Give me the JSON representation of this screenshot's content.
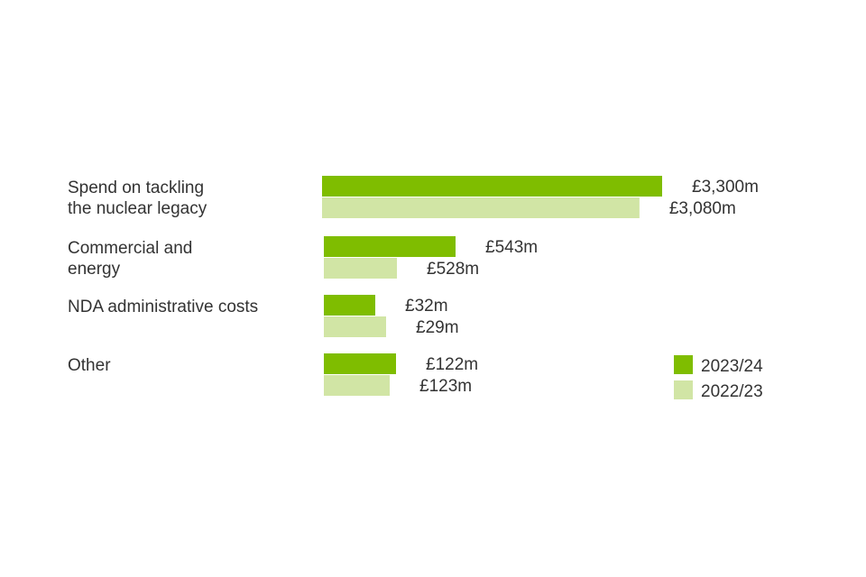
{
  "chart_data": {
    "type": "bar",
    "orientation": "horizontal",
    "categories": [
      [
        "Spend on tackling",
        "the nuclear legacy"
      ],
      [
        "Commercial and",
        "energy"
      ],
      [
        "NDA administrative costs"
      ],
      [
        "Other"
      ]
    ],
    "series": [
      {
        "name": "2023/24",
        "color": "#7fbd00",
        "values": [
          3300,
          543,
          32,
          122
        ],
        "value_labels": [
          "£3,300m",
          "£543m",
          "£32m",
          "£122m"
        ]
      },
      {
        "name": "2022/23",
        "color": "#d1e5a5",
        "values": [
          3080,
          528,
          29,
          123
        ],
        "value_labels": [
          "£3,080m",
          "£528m",
          "£29m",
          "£123m"
        ]
      }
    ],
    "legend_position": "bottom-right",
    "grid": false
  }
}
